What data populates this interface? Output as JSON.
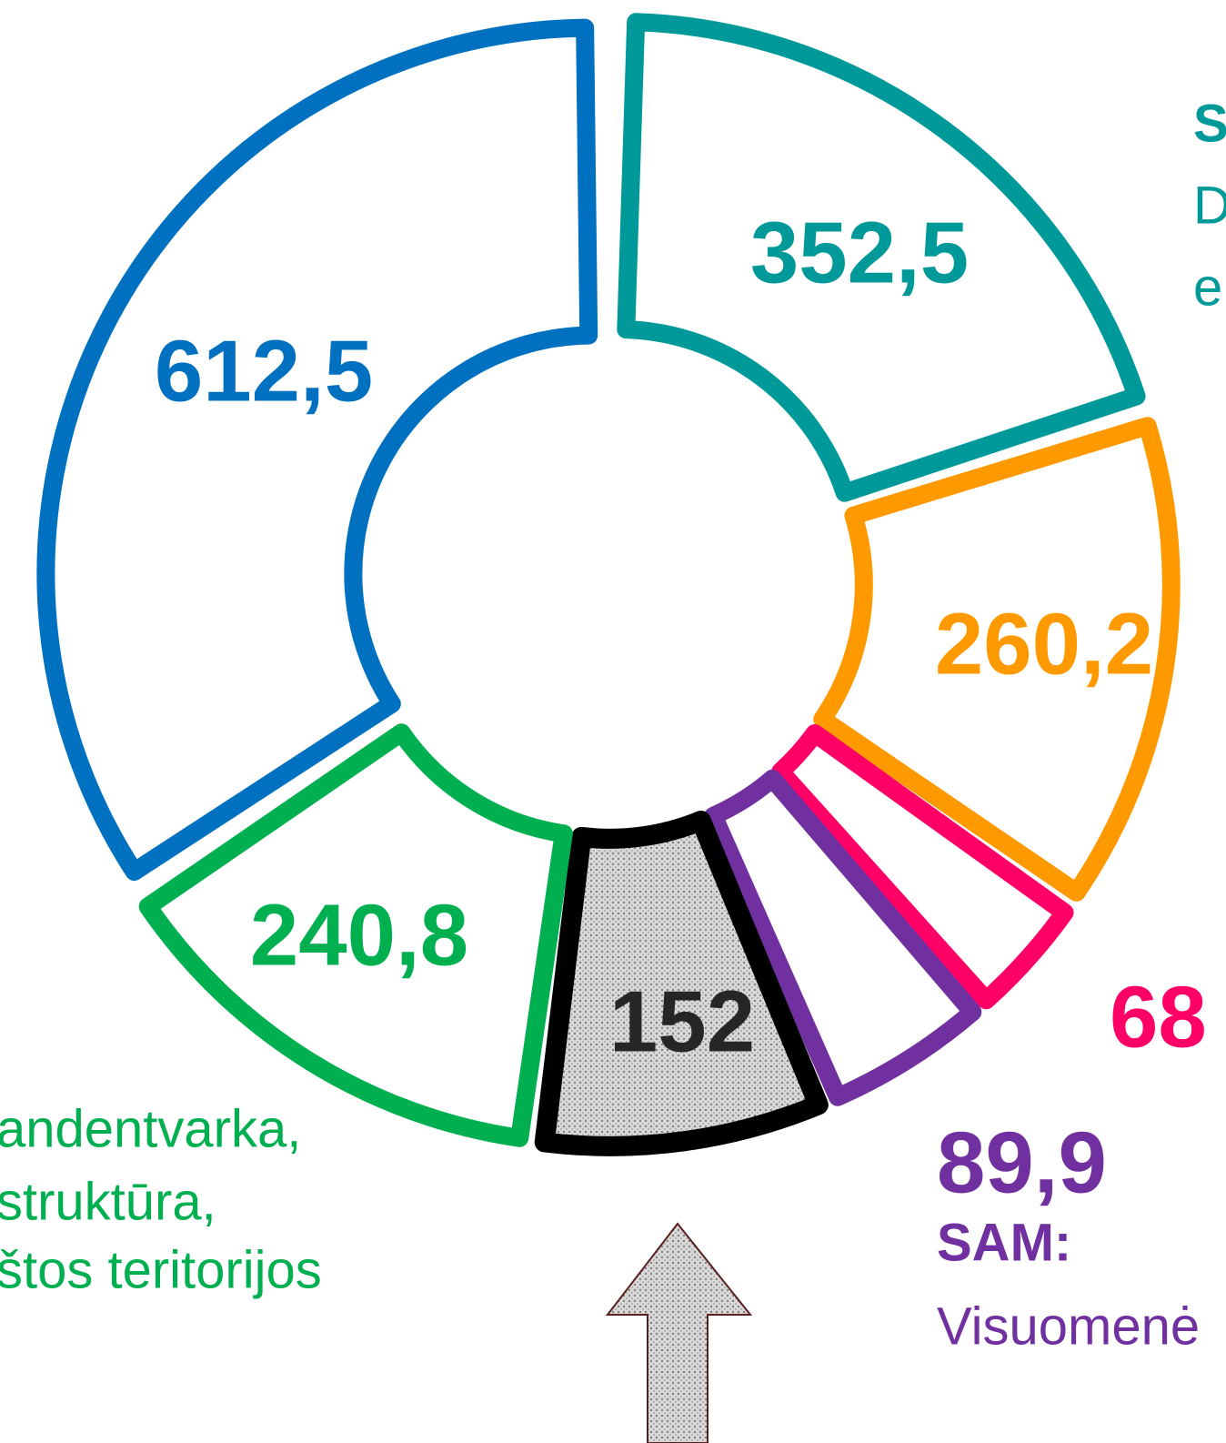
{
  "chart_data": {
    "type": "donut",
    "values": [
      352.5,
      260.2,
      68,
      89.9,
      152,
      240.8,
      612.5
    ],
    "value_labels": [
      "352,5",
      "260,2",
      "68",
      "89,9",
      "152",
      "240,8",
      "612,5"
    ],
    "colors": [
      "#009999",
      "#ff9900",
      "#ff0066",
      "#7030a0",
      "#000000",
      "#00b050",
      "#0070c0"
    ],
    "annotations": [
      {
        "text": "S",
        "color": "#009999",
        "bold": true
      },
      {
        "text": "D",
        "color": "#009999",
        "bold": false
      },
      {
        "text": "e",
        "color": "#009999",
        "bold": false
      },
      {
        "text": "SAM:",
        "color": "#7030a0",
        "bold": true
      },
      {
        "text": "Visuomenė",
        "color": "#7030a0",
        "bold": false
      },
      {
        "text": "andentvarka,",
        "color": "#00b050",
        "bold": false
      },
      {
        "text": "struktūra,",
        "color": "#00b050",
        "bold": false
      },
      {
        "text": "štos teritorijos",
        "color": "#00b050",
        "bold": false
      }
    ]
  }
}
